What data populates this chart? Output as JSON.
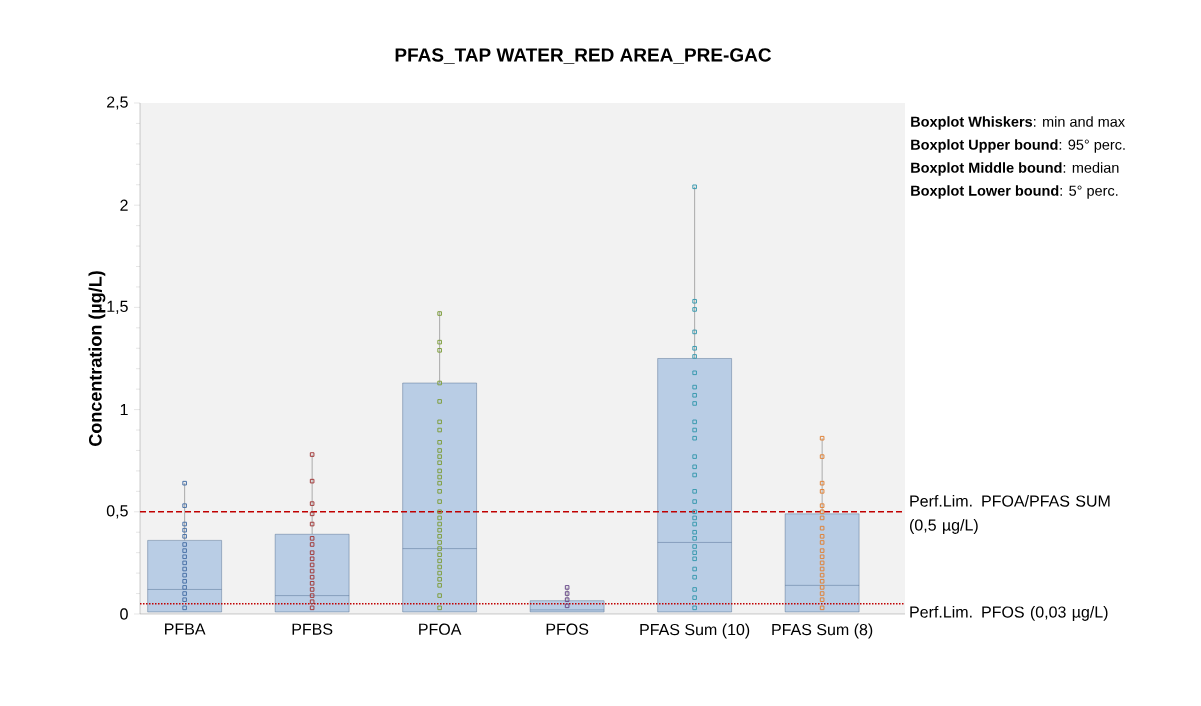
{
  "chart_data": {
    "type": "box",
    "title": "PFAS_TAP WATER_RED AREA_PRE-GAC",
    "ylabel": "Concentration (µg/L)",
    "categories": [
      "PFBA",
      "PFBS",
      "PFOA",
      "PFOS",
      "PFAS Sum (10)",
      "PFAS Sum (8)"
    ],
    "ylim": [
      0,
      2.5
    ],
    "yticks": [
      0,
      {
        "value": 0.5,
        "label": "0,5"
      },
      1,
      {
        "value": 1.5,
        "label": "1,5"
      },
      2,
      {
        "value": 2.5,
        "label": "2,5"
      }
    ],
    "grid": false,
    "marker": "square",
    "series": [
      {
        "type": "box",
        "color": "#b9cde5",
        "boxes": [
          {
            "low": 0.01,
            "q1": 0.01,
            "median": 0.12,
            "q3": 0.36,
            "high": 0.64
          },
          {
            "low": 0.01,
            "q1": 0.01,
            "median": 0.09,
            "q3": 0.39,
            "high": 0.78
          },
          {
            "low": 0.01,
            "q1": 0.01,
            "median": 0.32,
            "q3": 1.13,
            "high": 1.48
          },
          {
            "low": 0.01,
            "q1": 0.01,
            "median": 0.02,
            "q3": 0.065,
            "high": 0.13
          },
          {
            "low": 0.01,
            "q1": 0.01,
            "median": 0.35,
            "q3": 1.25,
            "high": 2.09
          },
          {
            "low": 0.01,
            "q1": 0.01,
            "median": 0.14,
            "q3": 0.49,
            "high": 0.86
          }
        ]
      },
      {
        "type": "scatter",
        "color": "#4a72a8",
        "x": [
          "PFBA",
          "PFBA",
          "PFBA",
          "PFBA",
          "PFBA",
          "PFBA",
          "PFBA",
          "PFBA",
          "PFBA",
          "PFBA",
          "PFBA",
          "PFBA",
          "PFBA",
          "PFBA",
          "PFBA",
          "PFBA"
        ],
        "values": [
          0.64,
          0.53,
          0.44,
          0.41,
          0.38,
          0.34,
          0.31,
          0.28,
          0.25,
          0.22,
          0.19,
          0.16,
          0.13,
          0.1,
          0.07,
          0.03
        ]
      },
      {
        "type": "scatter",
        "color": "#a33b3b",
        "x": [
          "PFBS",
          "PFBS",
          "PFBS",
          "PFBS",
          "PFBS",
          "PFBS",
          "PFBS",
          "PFBS",
          "PFBS",
          "PFBS",
          "PFBS",
          "PFBS",
          "PFBS",
          "PFBS",
          "PFBS",
          "PFBS",
          "PFBS"
        ],
        "values": [
          0.78,
          0.65,
          0.54,
          0.49,
          0.44,
          0.37,
          0.34,
          0.3,
          0.27,
          0.24,
          0.21,
          0.18,
          0.15,
          0.12,
          0.09,
          0.06,
          0.03
        ]
      },
      {
        "type": "scatter",
        "color": "#7f9f3f",
        "x": [
          "PFOA",
          "PFOA",
          "PFOA",
          "PFOA",
          "PFOA",
          "PFOA",
          "PFOA",
          "PFOA",
          "PFOA",
          "PFOA",
          "PFOA",
          "PFOA",
          "PFOA",
          "PFOA",
          "PFOA",
          "PFOA",
          "PFOA",
          "PFOA",
          "PFOA",
          "PFOA",
          "PFOA",
          "PFOA",
          "PFOA",
          "PFOA",
          "PFOA",
          "PFOA",
          "PFOA",
          "PFOA",
          "PFOA",
          "PFOA",
          "PFOA"
        ],
        "values": [
          1.47,
          1.33,
          1.29,
          1.13,
          1.04,
          0.94,
          0.9,
          0.84,
          0.8,
          0.77,
          0.74,
          0.7,
          0.67,
          0.64,
          0.6,
          0.55,
          0.5,
          0.47,
          0.44,
          0.41,
          0.38,
          0.35,
          0.32,
          0.29,
          0.26,
          0.23,
          0.2,
          0.17,
          0.14,
          0.09,
          0.03
        ]
      },
      {
        "type": "scatter",
        "color": "#6b4c8c",
        "x": [
          "PFOS",
          "PFOS",
          "PFOS",
          "PFOS"
        ],
        "values": [
          0.13,
          0.1,
          0.07,
          0.04
        ]
      },
      {
        "type": "scatter",
        "color": "#3b9bb0",
        "x": [
          "PFAS Sum (10)",
          "PFAS Sum (10)",
          "PFAS Sum (10)",
          "PFAS Sum (10)",
          "PFAS Sum (10)",
          "PFAS Sum (10)",
          "PFAS Sum (10)",
          "PFAS Sum (10)",
          "PFAS Sum (10)",
          "PFAS Sum (10)",
          "PFAS Sum (10)",
          "PFAS Sum (10)",
          "PFAS Sum (10)",
          "PFAS Sum (10)",
          "PFAS Sum (10)",
          "PFAS Sum (10)",
          "PFAS Sum (10)",
          "PFAS Sum (10)",
          "PFAS Sum (10)",
          "PFAS Sum (10)",
          "PFAS Sum (10)",
          "PFAS Sum (10)",
          "PFAS Sum (10)",
          "PFAS Sum (10)",
          "PFAS Sum (10)",
          "PFAS Sum (10)",
          "PFAS Sum (10)",
          "PFAS Sum (10)",
          "PFAS Sum (10)",
          "PFAS Sum (10)",
          "PFAS Sum (10)"
        ],
        "values": [
          2.09,
          1.53,
          1.49,
          1.38,
          1.3,
          1.26,
          1.18,
          1.11,
          1.07,
          1.03,
          0.94,
          0.9,
          0.86,
          0.77,
          0.72,
          0.68,
          0.6,
          0.55,
          0.5,
          0.47,
          0.44,
          0.4,
          0.37,
          0.33,
          0.3,
          0.27,
          0.22,
          0.18,
          0.12,
          0.08,
          0.03
        ]
      },
      {
        "type": "scatter",
        "color": "#e0843a",
        "x": [
          "PFAS Sum (8)",
          "PFAS Sum (8)",
          "PFAS Sum (8)",
          "PFAS Sum (8)",
          "PFAS Sum (8)",
          "PFAS Sum (8)",
          "PFAS Sum (8)",
          "PFAS Sum (8)",
          "PFAS Sum (8)",
          "PFAS Sum (8)",
          "PFAS Sum (8)",
          "PFAS Sum (8)",
          "PFAS Sum (8)",
          "PFAS Sum (8)",
          "PFAS Sum (8)",
          "PFAS Sum (8)",
          "PFAS Sum (8)",
          "PFAS Sum (8)",
          "PFAS Sum (8)",
          "PFAS Sum (8)"
        ],
        "values": [
          0.86,
          0.77,
          0.64,
          0.6,
          0.53,
          0.5,
          0.47,
          0.42,
          0.38,
          0.35,
          0.31,
          0.28,
          0.25,
          0.22,
          0.19,
          0.16,
          0.13,
          0.1,
          0.07,
          0.03
        ]
      }
    ],
    "ref_lines": [
      {
        "axis": "y",
        "value": 0.5,
        "label": "Perf.Lim. PFOA/PFAS SUM (0,5 µg/L)",
        "color": "#c00000",
        "line_style": "dashed"
      },
      {
        "axis": "y",
        "value": 0.05,
        "label": "Perf.Lim. PFOS (0,03 µg/L)",
        "color": "#c00000",
        "line_style": "dotted"
      }
    ],
    "annotations": [
      "**Boxplot Whiskers**: min and max",
      "**Boxplot Upper bound**: 95° perc.",
      "**Boxplot Middle bound**: median",
      "**Boxplot Lower bound**: 5° perc."
    ]
  }
}
